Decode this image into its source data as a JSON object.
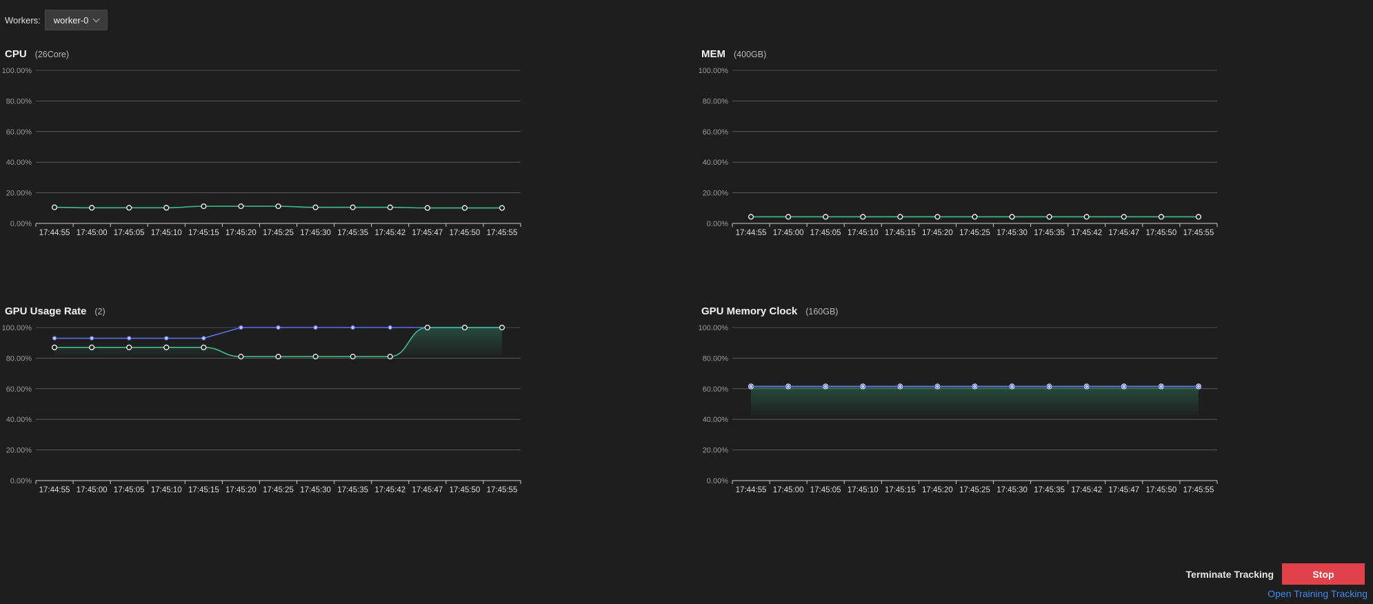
{
  "workers": {
    "label": "Workers:",
    "selected": "worker-0"
  },
  "colors": {
    "series_primary": "#3fbf8f",
    "series_secondary": "#5c6ff0",
    "marker_fill": "#1e1e1e",
    "grid": "#bdbdbd"
  },
  "panels": {
    "cpu": {
      "title": "CPU",
      "subtitle": "(26Core)"
    },
    "mem": {
      "title": "MEM",
      "subtitle": "(400GB)"
    },
    "gpu_usage": {
      "title": "GPU Usage Rate",
      "subtitle": "(2)"
    },
    "gpu_memory": {
      "title": "GPU Memory Clock",
      "subtitle": "(160GB)"
    }
  },
  "actions": {
    "terminate_label": "Terminate Tracking",
    "stop_label": "Stop",
    "open_link_label": "Open Training Tracking"
  },
  "chart_data": [
    {
      "id": "cpu",
      "type": "line",
      "title": "CPU",
      "categories": [
        "17:44:55",
        "17:45:00",
        "17:45:05",
        "17:45:10",
        "17:45:15",
        "17:45:20",
        "17:45:25",
        "17:45:30",
        "17:45:35",
        "17:45:42",
        "17:45:47",
        "17:45:50",
        "17:45:55"
      ],
      "yticks": [
        "0.00%",
        "20.00%",
        "40.00%",
        "60.00%",
        "80.00%",
        "100.00%"
      ],
      "ylim": [
        0,
        100
      ],
      "grid": true,
      "series": [
        {
          "values": [
            10.5,
            10.2,
            10.2,
            10.2,
            11.2,
            11.2,
            11.2,
            10.5,
            10.5,
            10.5,
            10.1,
            10.1,
            10.1
          ],
          "color": "#3fbf8f",
          "smooth": true,
          "area": false,
          "marker": "ring"
        }
      ]
    },
    {
      "id": "mem",
      "type": "line",
      "title": "MEM",
      "categories": [
        "17:44:55",
        "17:45:00",
        "17:45:05",
        "17:45:10",
        "17:45:15",
        "17:45:20",
        "17:45:25",
        "17:45:30",
        "17:45:35",
        "17:45:42",
        "17:45:47",
        "17:45:50",
        "17:45:55"
      ],
      "yticks": [
        "0.00%",
        "20.00%",
        "40.00%",
        "60.00%",
        "80.00%",
        "100.00%"
      ],
      "ylim": [
        0,
        100
      ],
      "grid": true,
      "series": [
        {
          "values": [
            4.3,
            4.3,
            4.3,
            4.3,
            4.3,
            4.3,
            4.3,
            4.3,
            4.3,
            4.3,
            4.3,
            4.3,
            4.3
          ],
          "color": "#3fbf8f",
          "smooth": true,
          "area": false,
          "marker": "ring"
        }
      ]
    },
    {
      "id": "gpu_usage",
      "type": "line",
      "title": "GPU Usage Rate",
      "categories": [
        "17:44:55",
        "17:45:00",
        "17:45:05",
        "17:45:10",
        "17:45:15",
        "17:45:20",
        "17:45:25",
        "17:45:30",
        "17:45:35",
        "17:45:42",
        "17:45:47",
        "17:45:50",
        "17:45:55"
      ],
      "yticks": [
        "0.00%",
        "20.00%",
        "40.00%",
        "60.00%",
        "80.00%",
        "100.00%"
      ],
      "ylim": [
        0,
        100
      ],
      "grid": true,
      "series": [
        {
          "values": [
            93,
            93,
            93,
            93,
            93,
            100,
            100,
            100,
            100,
            100,
            100,
            100,
            100
          ],
          "color": "#5c6ff0",
          "smooth": false,
          "area": false,
          "marker": "dot"
        },
        {
          "values": [
            87,
            87,
            87,
            87,
            87,
            81,
            81,
            81,
            81,
            81,
            100,
            100,
            100
          ],
          "color": "#3fbf8f",
          "smooth": true,
          "area": true,
          "marker": "ring"
        }
      ]
    },
    {
      "id": "gpu_memory",
      "type": "line",
      "title": "GPU Memory Clock",
      "categories": [
        "17:44:55",
        "17:45:00",
        "17:45:05",
        "17:45:10",
        "17:45:15",
        "17:45:20",
        "17:45:25",
        "17:45:30",
        "17:45:35",
        "17:45:42",
        "17:45:47",
        "17:45:50",
        "17:45:55"
      ],
      "yticks": [
        "0.00%",
        "20.00%",
        "40.00%",
        "60.00%",
        "80.00%",
        "100.00%"
      ],
      "ylim": [
        0,
        100
      ],
      "grid": true,
      "series": [
        {
          "values": [
            61.5,
            61.5,
            61.5,
            61.5,
            61.5,
            61.5,
            61.5,
            61.5,
            61.5,
            61.5,
            61.5,
            61.5,
            61.5
          ],
          "color": "#3fbf8f",
          "smooth": true,
          "area": true,
          "marker": "ring"
        },
        {
          "values": [
            61.5,
            61.5,
            61.5,
            61.5,
            61.5,
            61.5,
            61.5,
            61.5,
            61.5,
            61.5,
            61.5,
            61.5,
            61.5
          ],
          "color": "#5c6ff0",
          "smooth": false,
          "area": false,
          "marker": "dot"
        }
      ]
    }
  ]
}
